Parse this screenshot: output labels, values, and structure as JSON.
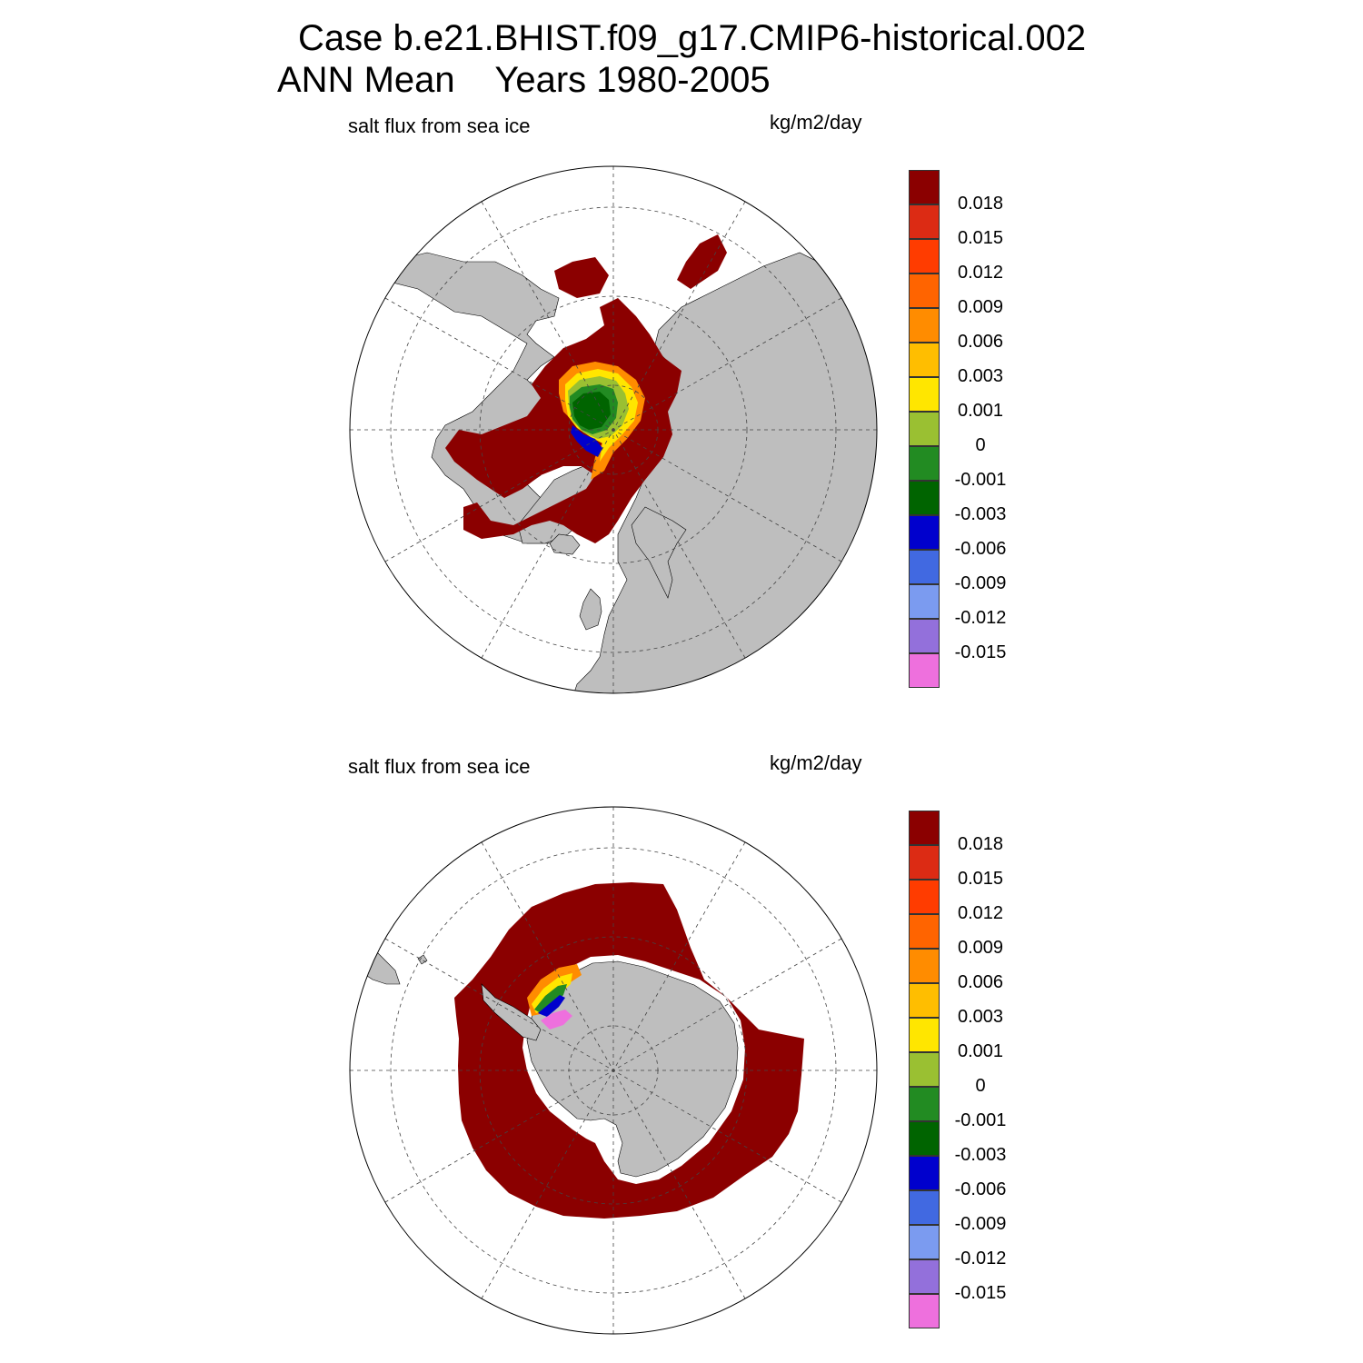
{
  "header": {
    "title_line1": "Case b.e21.BHIST.f09_g17.CMIP6-historical.002",
    "title_line2": "ANN Mean    Years 1980-2005"
  },
  "panels": [
    {
      "variable": "salt flux from sea ice",
      "units": "kg/m2/day",
      "hemisphere": "north"
    },
    {
      "variable": "salt flux from sea ice",
      "units": "kg/m2/day",
      "hemisphere": "south"
    }
  ],
  "colorbar": {
    "colors": [
      "#8b0000",
      "#dc2b14",
      "#ff3c00",
      "#ff6400",
      "#ff8c00",
      "#ffbe00",
      "#ffe600",
      "#9ac032",
      "#228b22",
      "#006400",
      "#0000cd",
      "#4169e1",
      "#7b9bf0",
      "#9370db",
      "#ee70dd"
    ],
    "labels": [
      "0.018",
      "0.015",
      "0.012",
      "0.009",
      "0.006",
      "0.003",
      "0.001",
      "0",
      "-0.001",
      "-0.003",
      "-0.006",
      "-0.009",
      "-0.012",
      "-0.015"
    ]
  },
  "map_colors": {
    "land": "#bebebe",
    "ice_flux_high": "#8b0000",
    "ocean": "#ffffff"
  }
}
